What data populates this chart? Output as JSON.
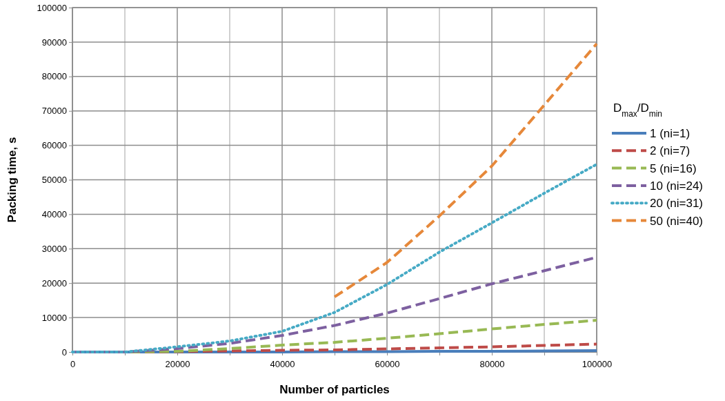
{
  "chart_data": {
    "type": "line",
    "xlabel": "Number of particles",
    "ylabel": "Packing time, s",
    "legend_title": "D$_{max}$/D$_{min}$",
    "legend": "right",
    "grid": true,
    "marker": "none",
    "xlim": [
      0,
      100000
    ],
    "ylim": [
      0,
      100000
    ],
    "xticks": [
      0,
      {
        "value": 10000,
        "label": null
      },
      20000,
      {
        "value": 30000,
        "label": null
      },
      40000,
      {
        "value": 50000,
        "label": null
      },
      60000,
      {
        "value": 70000,
        "label": null
      },
      80000,
      {
        "value": 90000,
        "label": null
      },
      100000
    ],
    "yticks": [
      0,
      10000,
      20000,
      30000,
      40000,
      50000,
      60000,
      70000,
      80000,
      90000,
      100000
    ],
    "x": [
      0,
      10000,
      20000,
      30000,
      40000,
      50000,
      60000,
      70000,
      80000,
      90000,
      100000
    ],
    "series": [
      {
        "name": "1 (ni=1)",
        "color": "#4a7ebb",
        "line_style": "solid",
        "values": [
          0,
          0,
          0,
          0,
          0,
          100,
          100,
          200,
          200,
          300,
          400
        ]
      },
      {
        "name": "2 (ni=7)",
        "color": "#be4b48",
        "line_style": "dashed",
        "values": [
          0,
          0,
          100,
          300,
          500,
          600,
          900,
          1200,
          1500,
          1900,
          2300
        ]
      },
      {
        "name": "5 (ni=16)",
        "color": "#98b954",
        "line_style": "dashed",
        "values": [
          0,
          0,
          200,
          1000,
          2000,
          2800,
          4000,
          5300,
          6700,
          8000,
          9200
        ]
      },
      {
        "name": "10 (ni=24)",
        "color": "#7d60a0",
        "line_style": "dashed",
        "values": [
          0,
          0,
          1000,
          2500,
          4800,
          7700,
          11300,
          15500,
          19800,
          23600,
          27500
        ]
      },
      {
        "name": "20 (ni=31)",
        "color": "#46aac5",
        "line_style": "dotted",
        "values": [
          0,
          0,
          1500,
          3200,
          6000,
          11500,
          19600,
          29000,
          37500,
          46100,
          54500
        ]
      },
      {
        "name": "50 (ni=40)",
        "color": "#e6883a",
        "line_style": "dashed",
        "x": [
          50000,
          60000,
          70000,
          80000,
          90000,
          100000
        ],
        "values": [
          16000,
          26000,
          39500,
          54000,
          71700,
          89500
        ]
      }
    ]
  }
}
